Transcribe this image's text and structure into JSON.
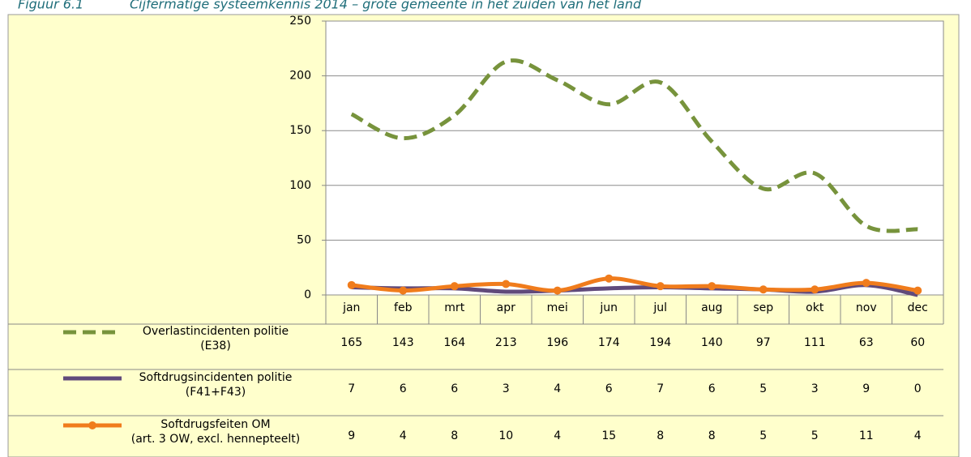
{
  "chart_data": {
    "type": "line",
    "figure_label": "Figuur 6.1",
    "title": "Cijfermatige systeemkennis 2014 – grote gemeente in het zuiden van het land",
    "categories": [
      "jan",
      "feb",
      "mrt",
      "apr",
      "mei",
      "jun",
      "jul",
      "aug",
      "sep",
      "okt",
      "nov",
      "dec"
    ],
    "series": [
      {
        "name": "Overlastincidenten politie\n(E38)",
        "color": "#77933c",
        "dash": true,
        "marker": false,
        "values": [
          165,
          143,
          164,
          213,
          196,
          174,
          194,
          140,
          97,
          111,
          63,
          60
        ]
      },
      {
        "name": "Softdrugsincidenten politie\n(F41+F43)",
        "color": "#604a7b",
        "dash": false,
        "marker": false,
        "values": [
          7,
          6,
          6,
          3,
          4,
          6,
          7,
          6,
          5,
          3,
          9,
          0
        ]
      },
      {
        "name": "Softdrugsfeiten OM\n(art. 3 OW, excl. hennepteelt)",
        "color": "#f07c1c",
        "dash": false,
        "marker": true,
        "values": [
          9,
          4,
          8,
          10,
          4,
          15,
          8,
          8,
          5,
          5,
          11,
          4
        ]
      }
    ],
    "ylim": [
      0,
      250
    ],
    "yticks": [
      0,
      50,
      100,
      150,
      200,
      250
    ],
    "grid": true
  }
}
